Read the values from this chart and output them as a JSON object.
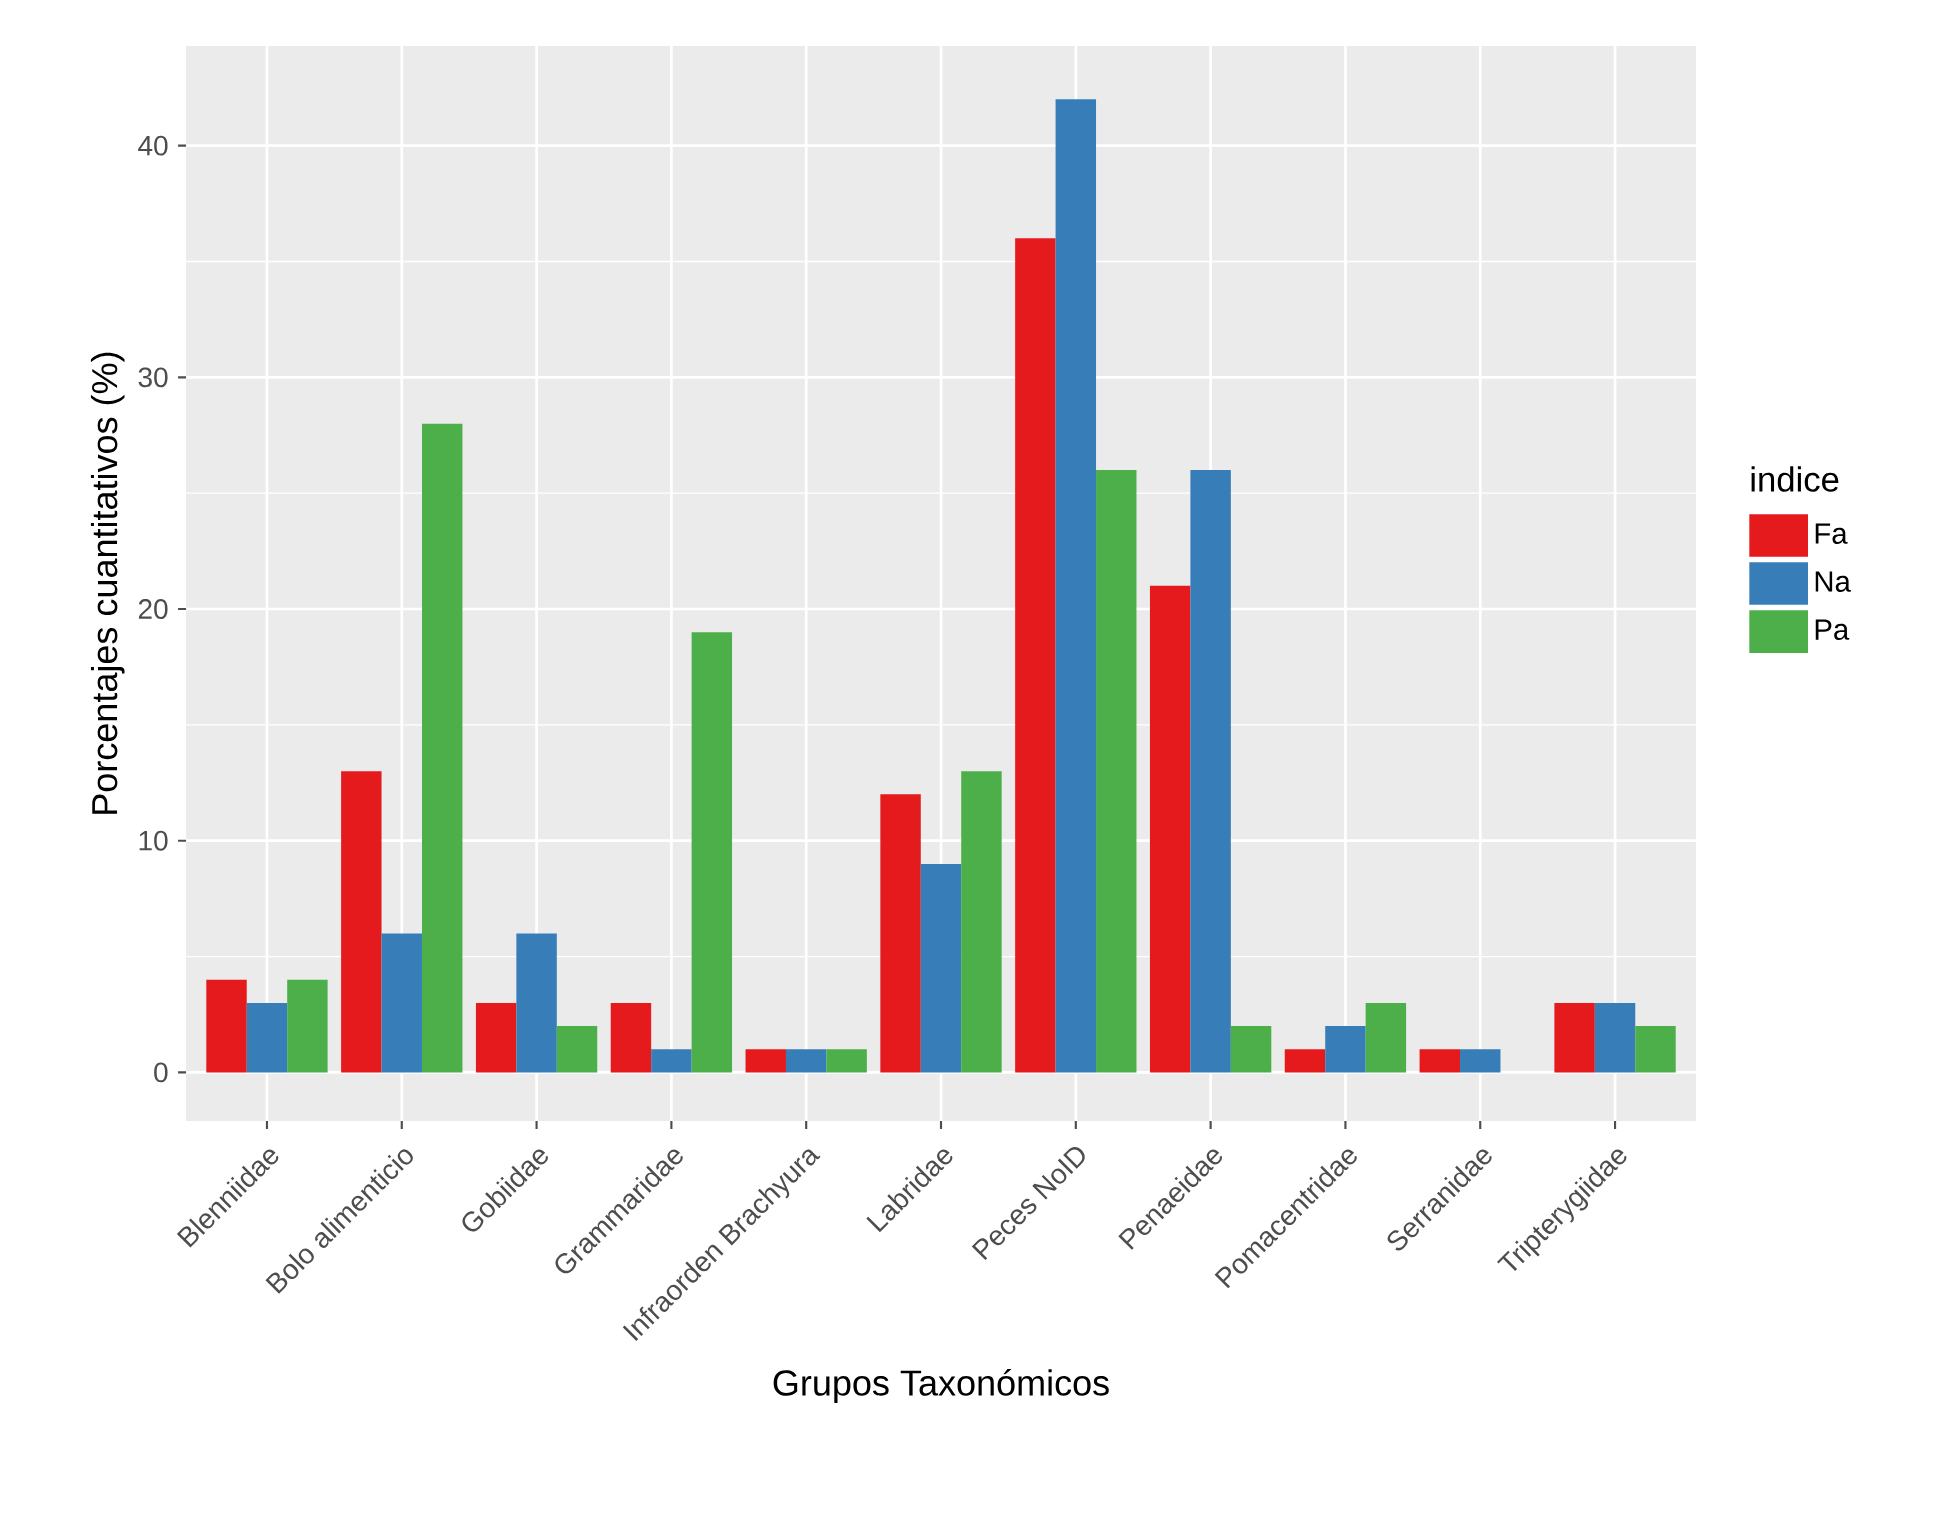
{
  "chart_data": {
    "type": "bar",
    "xlabel": "Grupos Taxonómicos",
    "ylabel": "Porcentajes cuantitativos (%)",
    "legend_title": "indice",
    "categories": [
      "Blenniidae",
      "Bolo alimenticio",
      "Gobiidae",
      "Grammaridae",
      "Infraorden Brachyura",
      "Labridae",
      "Peces NoID",
      "Penaeidae",
      "Pomacentridae",
      "Serranidae",
      "Tripterygiidae"
    ],
    "series": [
      {
        "name": "Fa",
        "color": "#e41a1c",
        "values": [
          4,
          13,
          3,
          3,
          1,
          12,
          36,
          21,
          1,
          1,
          3
        ]
      },
      {
        "name": "Na",
        "color": "#377eb8",
        "values": [
          3,
          6,
          6,
          1,
          1,
          9,
          42,
          26,
          2,
          1,
          3
        ]
      },
      {
        "name": "Pa",
        "color": "#4daf4a",
        "values": [
          4,
          28,
          2,
          19,
          1,
          13,
          26,
          2,
          3,
          null,
          2
        ]
      }
    ],
    "ylim": [
      -2.1,
      44.3
    ],
    "yticks": [
      0,
      10,
      20,
      30,
      40
    ],
    "grid": true,
    "legend": "right"
  }
}
